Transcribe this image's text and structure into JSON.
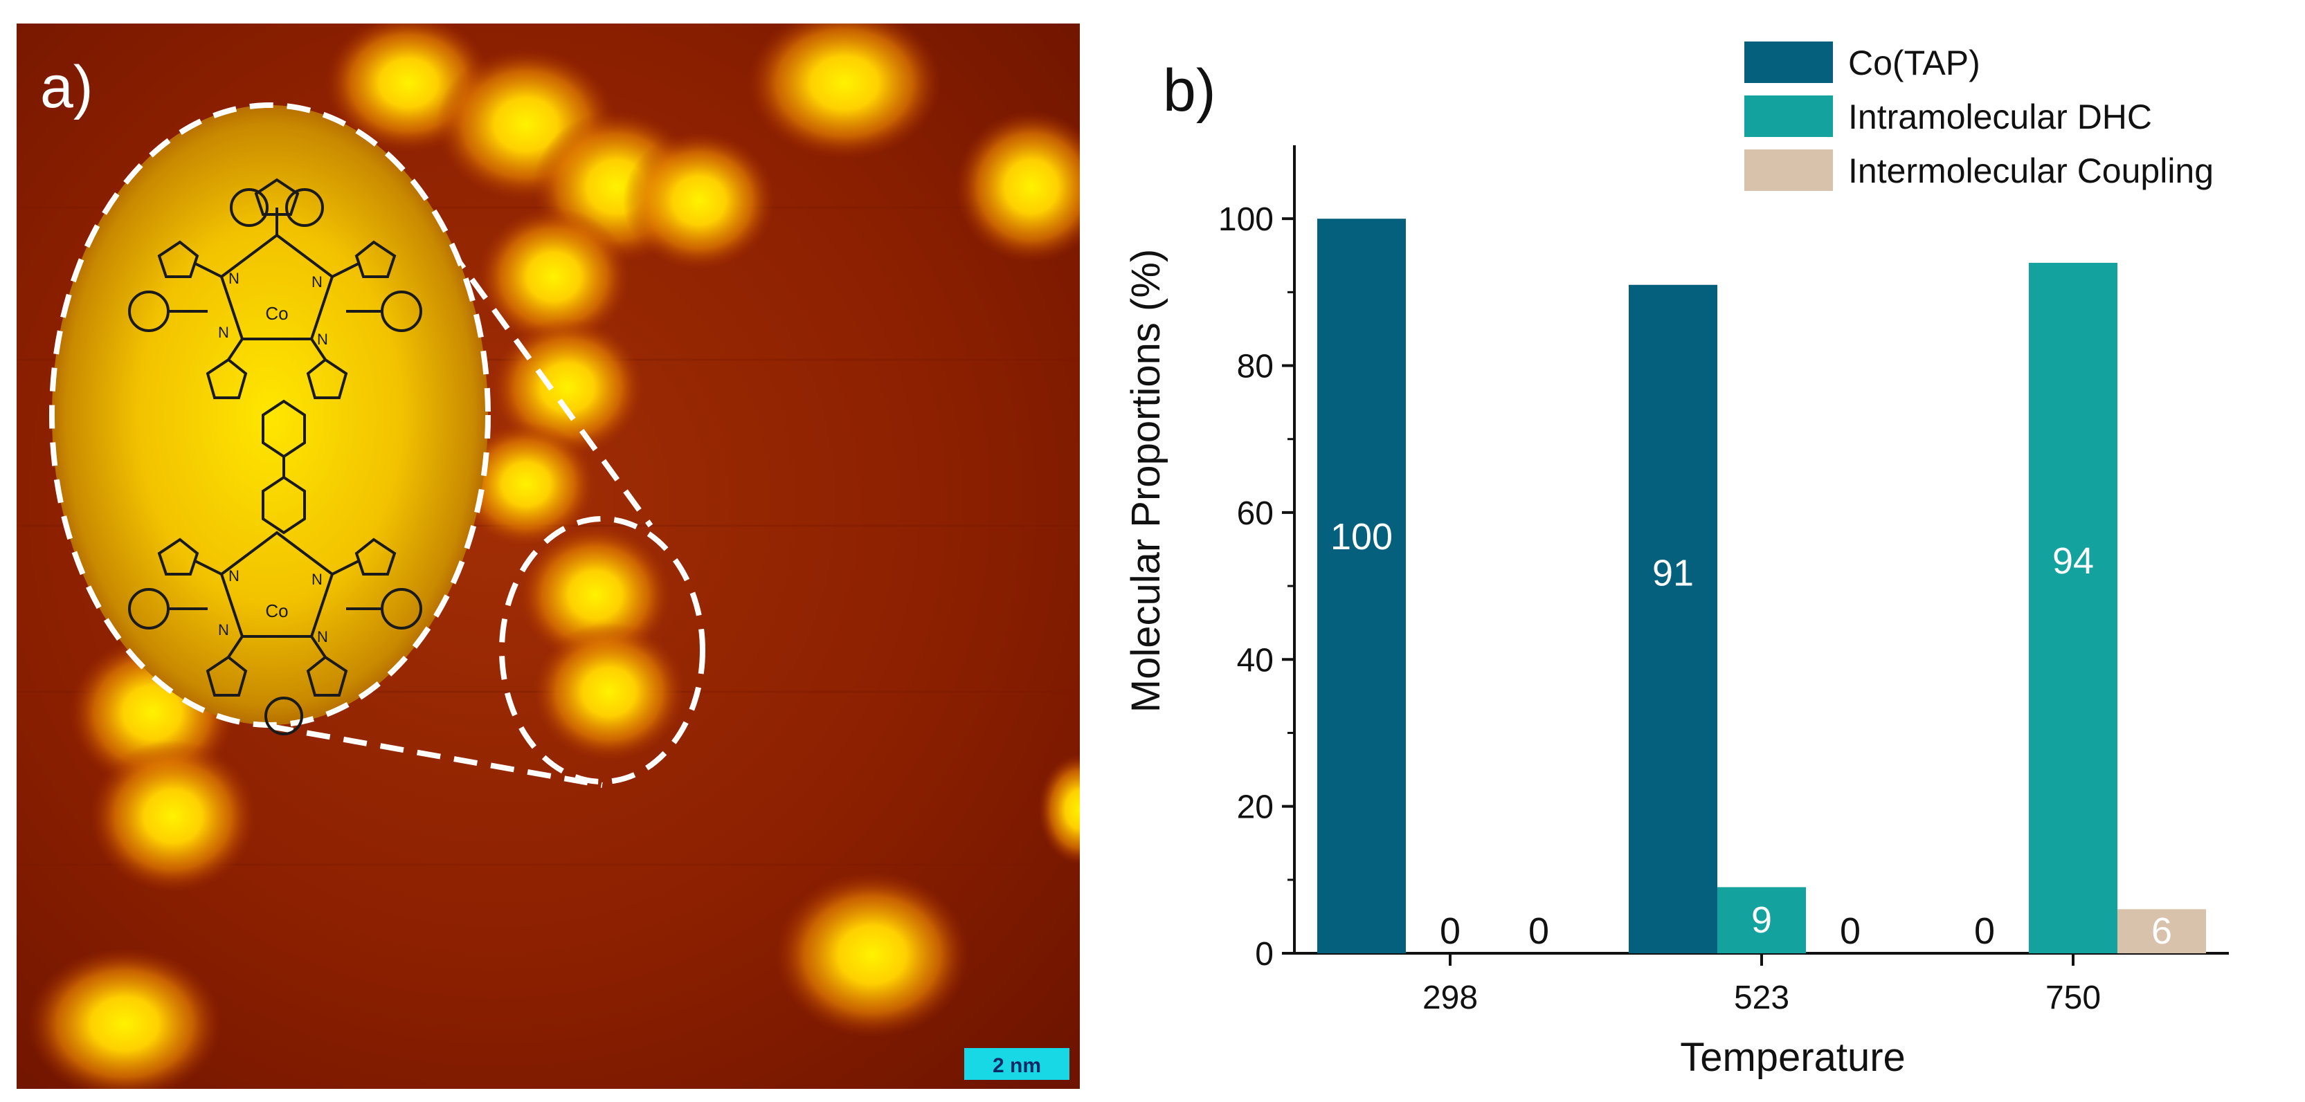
{
  "panel_a": {
    "label": "a)",
    "scale_bar_label": "2 nm",
    "molecule_atoms": {
      "nitrogen": "N",
      "cobalt": "Co"
    },
    "colors": {
      "stm_background": "#8a1e00",
      "stm_bright": "#ffe400",
      "scale_bar": "#18d8e6",
      "bond": "#1a1a1a"
    }
  },
  "panel_b": {
    "label": "b)"
  },
  "chart_data": {
    "type": "bar",
    "title": "",
    "xlabel": "Temperature",
    "ylabel": "Molecular Proportions (%)",
    "ylim": [
      0,
      110
    ],
    "yticks": [
      0,
      20,
      40,
      60,
      80,
      100
    ],
    "categories": [
      "298",
      "523",
      "750"
    ],
    "series": [
      {
        "name": "Co(TAP)",
        "color": "#04607d",
        "values": [
          100,
          91,
          0
        ],
        "labels": [
          "100",
          "91",
          "0"
        ]
      },
      {
        "name": "Intramolecular DHC",
        "color": "#13a29e",
        "values": [
          0,
          9,
          94
        ],
        "labels": [
          "0",
          "9",
          "94"
        ]
      },
      {
        "name": "Intermolecular Coupling",
        "color": "#d8c2ab",
        "values": [
          0,
          0,
          6
        ],
        "labels": [
          "0",
          "0",
          "6"
        ]
      }
    ],
    "legend_position": "top-right",
    "grid": false
  }
}
